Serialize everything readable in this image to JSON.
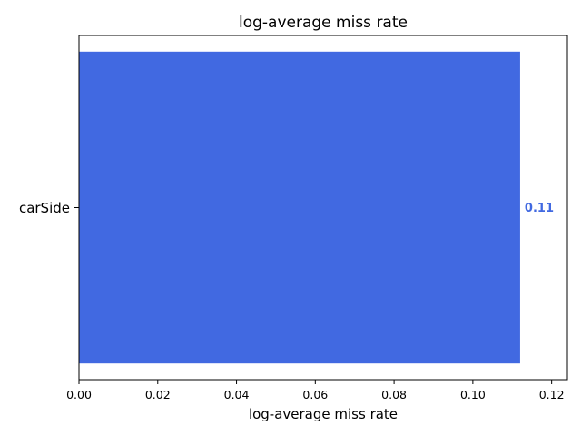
{
  "chart_data": {
    "type": "bar",
    "orientation": "horizontal",
    "title": "log-average miss rate",
    "xlabel": "log-average miss rate",
    "ylabel": "",
    "categories": [
      "carSide"
    ],
    "values": [
      0.112
    ],
    "value_labels": [
      "0.11"
    ],
    "xlim": [
      0,
      0.124
    ],
    "xticks": [
      0.0,
      0.02,
      0.04,
      0.06,
      0.08,
      0.1,
      0.12
    ],
    "xtick_labels": [
      "0.00",
      "0.02",
      "0.04",
      "0.06",
      "0.08",
      "0.10",
      "0.12"
    ],
    "bar_color": "#4169e1",
    "grid": false
  }
}
